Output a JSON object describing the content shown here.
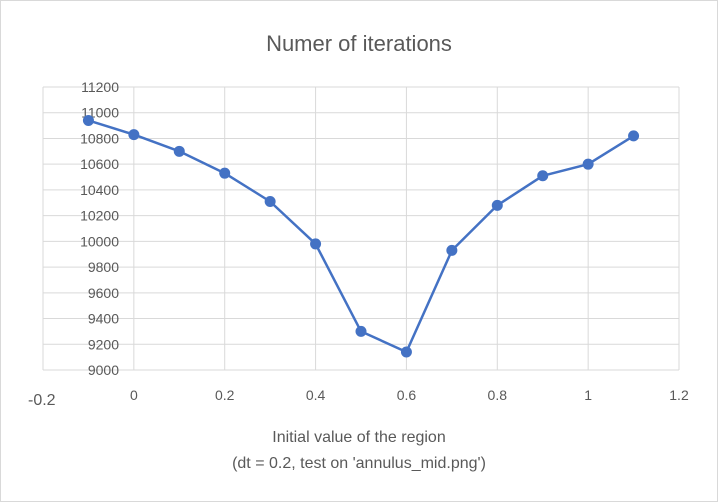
{
  "chart_data": {
    "type": "scatter",
    "title": "Numer of iterations",
    "xlabel": "Initial value of the region",
    "xlabel_sub": "(dt = 0.2, test on 'annulus_mid.png')",
    "ylabel": "",
    "xlim": [
      -0.2,
      1.2
    ],
    "ylim": [
      9000,
      11200
    ],
    "x_ticks": [
      "-0.2",
      "0",
      "0.2",
      "0.4",
      "0.6",
      "0.8",
      "1",
      "1.2"
    ],
    "y_ticks": [
      "9000",
      "9200",
      "9400",
      "9600",
      "9800",
      "10000",
      "10200",
      "10400",
      "10600",
      "10800",
      "11000",
      "11200"
    ],
    "grid": true,
    "legend": "none",
    "series": [
      {
        "color": "#4472c4",
        "x": [
          -0.1,
          0,
          0.1,
          0.2,
          0.3,
          0.4,
          0.5,
          0.6,
          0.7,
          0.8,
          0.9,
          1.0,
          1.1
        ],
        "y": [
          10940,
          10830,
          10700,
          10530,
          10310,
          9980,
          9300,
          9140,
          9930,
          10280,
          10510,
          10600,
          10820
        ]
      }
    ]
  }
}
